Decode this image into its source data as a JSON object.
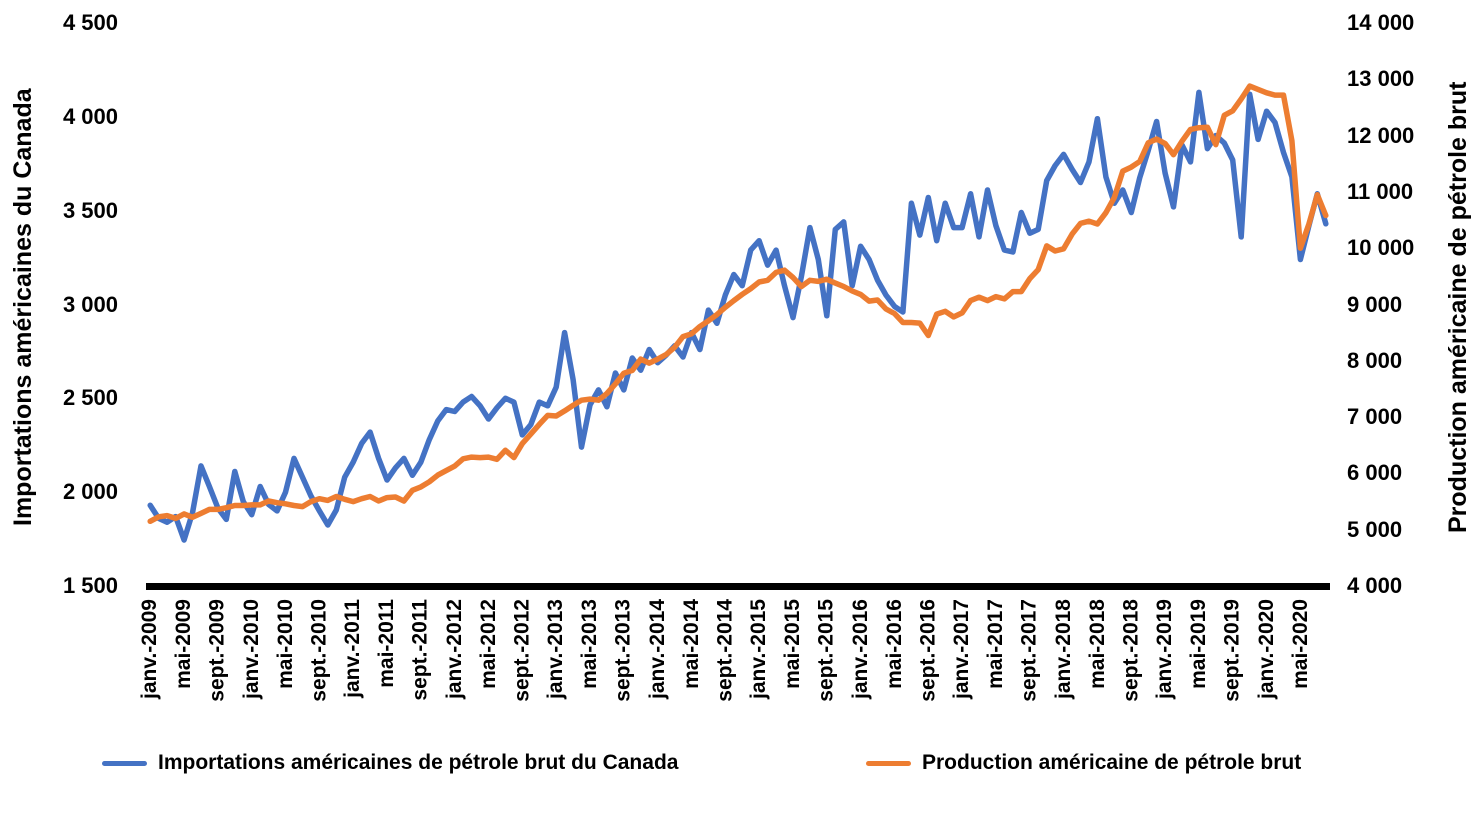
{
  "chart_data": {
    "type": "line",
    "title": "",
    "frequency": "monthly",
    "start_month": "janv.-2009",
    "left_axis": {
      "title": "Importations américaines du Canada",
      "min": 1500,
      "max": 4500,
      "ticks": [
        "4 500",
        "4 000",
        "3 500",
        "3 000",
        "2 500",
        "2 000",
        "1 500"
      ],
      "tick_values": [
        4500,
        4000,
        3500,
        3000,
        2500,
        2000,
        1500
      ]
    },
    "right_axis": {
      "title": "Production américaine de pétrole brut",
      "min": 4000,
      "max": 14000,
      "ticks": [
        "14 000",
        "13 000",
        "12 000",
        "11 000",
        "10 000",
        "9 000",
        "8 000",
        "7 000",
        "6 000",
        "5 000",
        "4 000"
      ],
      "tick_values": [
        14000,
        13000,
        12000,
        11000,
        10000,
        9000,
        8000,
        7000,
        6000,
        5000,
        4000
      ]
    },
    "x_axis": {
      "label_every_n_months": 4,
      "visible_tick_labels": [
        "janv.-2009",
        "mai-2009",
        "sept.-2009",
        "janv.-2010",
        "mai-2010",
        "sept.-2010",
        "janv.-2011",
        "mai-2011",
        "sept.-2011",
        "janv.-2012",
        "mai-2012",
        "sept.-2012",
        "janv.-2013",
        "mai-2013",
        "sept.-2013",
        "janv.-2014",
        "mai-2014",
        "sept.-2014",
        "janv.-2015",
        "mai-2015",
        "sept.-2015",
        "janv.-2016",
        "mai-2016",
        "sept.-2016",
        "janv.-2017",
        "mai-2017",
        "sept.-2017",
        "janv.-2018",
        "mai-2018",
        "sept.-2018",
        "janv.-2019",
        "mai-2019",
        "sept.-2019",
        "janv.-2020",
        "mai-2020"
      ]
    },
    "series": [
      {
        "name": "Importations américaines de pétrole brut du Canada",
        "color": "#4472C4",
        "axis": "left",
        "values": [
          1930,
          1860,
          1840,
          1870,
          1745,
          1890,
          2140,
          2030,
          1915,
          1855,
          2110,
          1950,
          1880,
          2030,
          1935,
          1900,
          2000,
          2180,
          2080,
          1980,
          1900,
          1825,
          1905,
          2080,
          2160,
          2260,
          2320,
          2180,
          2065,
          2130,
          2180,
          2090,
          2160,
          2280,
          2380,
          2440,
          2430,
          2480,
          2510,
          2460,
          2390,
          2450,
          2500,
          2480,
          2305,
          2360,
          2480,
          2460,
          2560,
          2850,
          2600,
          2240,
          2465,
          2545,
          2455,
          2635,
          2545,
          2715,
          2650,
          2760,
          2690,
          2730,
          2780,
          2720,
          2850,
          2760,
          2970,
          2900,
          3050,
          3160,
          3100,
          3290,
          3340,
          3210,
          3290,
          3100,
          2930,
          3150,
          3410,
          3240,
          2940,
          3400,
          3440,
          3100,
          3310,
          3240,
          3130,
          3050,
          2990,
          2960,
          3540,
          3370,
          3570,
          3340,
          3540,
          3410,
          3410,
          3590,
          3360,
          3610,
          3420,
          3290,
          3280,
          3490,
          3380,
          3400,
          3660,
          3740,
          3800,
          3720,
          3650,
          3760,
          3990,
          3680,
          3540,
          3610,
          3490,
          3675,
          3820,
          3975,
          3700,
          3520,
          3850,
          3760,
          4130,
          3830,
          3900,
          3860,
          3770,
          3360,
          4120,
          3880,
          4030,
          3970,
          3810,
          3680,
          3240,
          3420,
          3590,
          3430
        ]
      },
      {
        "name": "Production américaine de pétrole brut",
        "color": "#ED7D31",
        "axis": "right",
        "values": [
          5150,
          5230,
          5250,
          5200,
          5280,
          5220,
          5290,
          5360,
          5360,
          5390,
          5430,
          5430,
          5440,
          5440,
          5510,
          5480,
          5460,
          5430,
          5410,
          5500,
          5550,
          5520,
          5590,
          5540,
          5500,
          5550,
          5590,
          5510,
          5570,
          5580,
          5510,
          5700,
          5760,
          5850,
          5970,
          6050,
          6130,
          6260,
          6290,
          6280,
          6290,
          6250,
          6410,
          6280,
          6530,
          6700,
          6870,
          7030,
          7020,
          7110,
          7210,
          7300,
          7320,
          7300,
          7420,
          7590,
          7780,
          7830,
          8030,
          7960,
          8030,
          8110,
          8240,
          8430,
          8480,
          8610,
          8710,
          8820,
          8950,
          9070,
          9180,
          9280,
          9400,
          9430,
          9570,
          9610,
          9480,
          9320,
          9430,
          9410,
          9450,
          9380,
          9320,
          9240,
          9180,
          9060,
          9080,
          8920,
          8840,
          8680,
          8680,
          8670,
          8450,
          8830,
          8880,
          8780,
          8850,
          9070,
          9130,
          9070,
          9140,
          9100,
          9230,
          9230,
          9460,
          9620,
          10040,
          9950,
          9990,
          10250,
          10440,
          10480,
          10430,
          10630,
          10900,
          11370,
          11440,
          11540,
          11870,
          11940,
          11860,
          11660,
          11900,
          12110,
          12140,
          12150,
          11840,
          12360,
          12440,
          12650,
          12880,
          12820,
          12760,
          12720,
          12720,
          11910,
          10000,
          10430,
          10950,
          10580
        ]
      }
    ],
    "legend": {
      "position": "bottom",
      "items": [
        {
          "label": "Importations américaines de pétrole brut du Canada",
          "color": "#4472C4"
        },
        {
          "label": "Production américaine de pétrole brut",
          "color": "#ED7D31"
        }
      ]
    }
  }
}
